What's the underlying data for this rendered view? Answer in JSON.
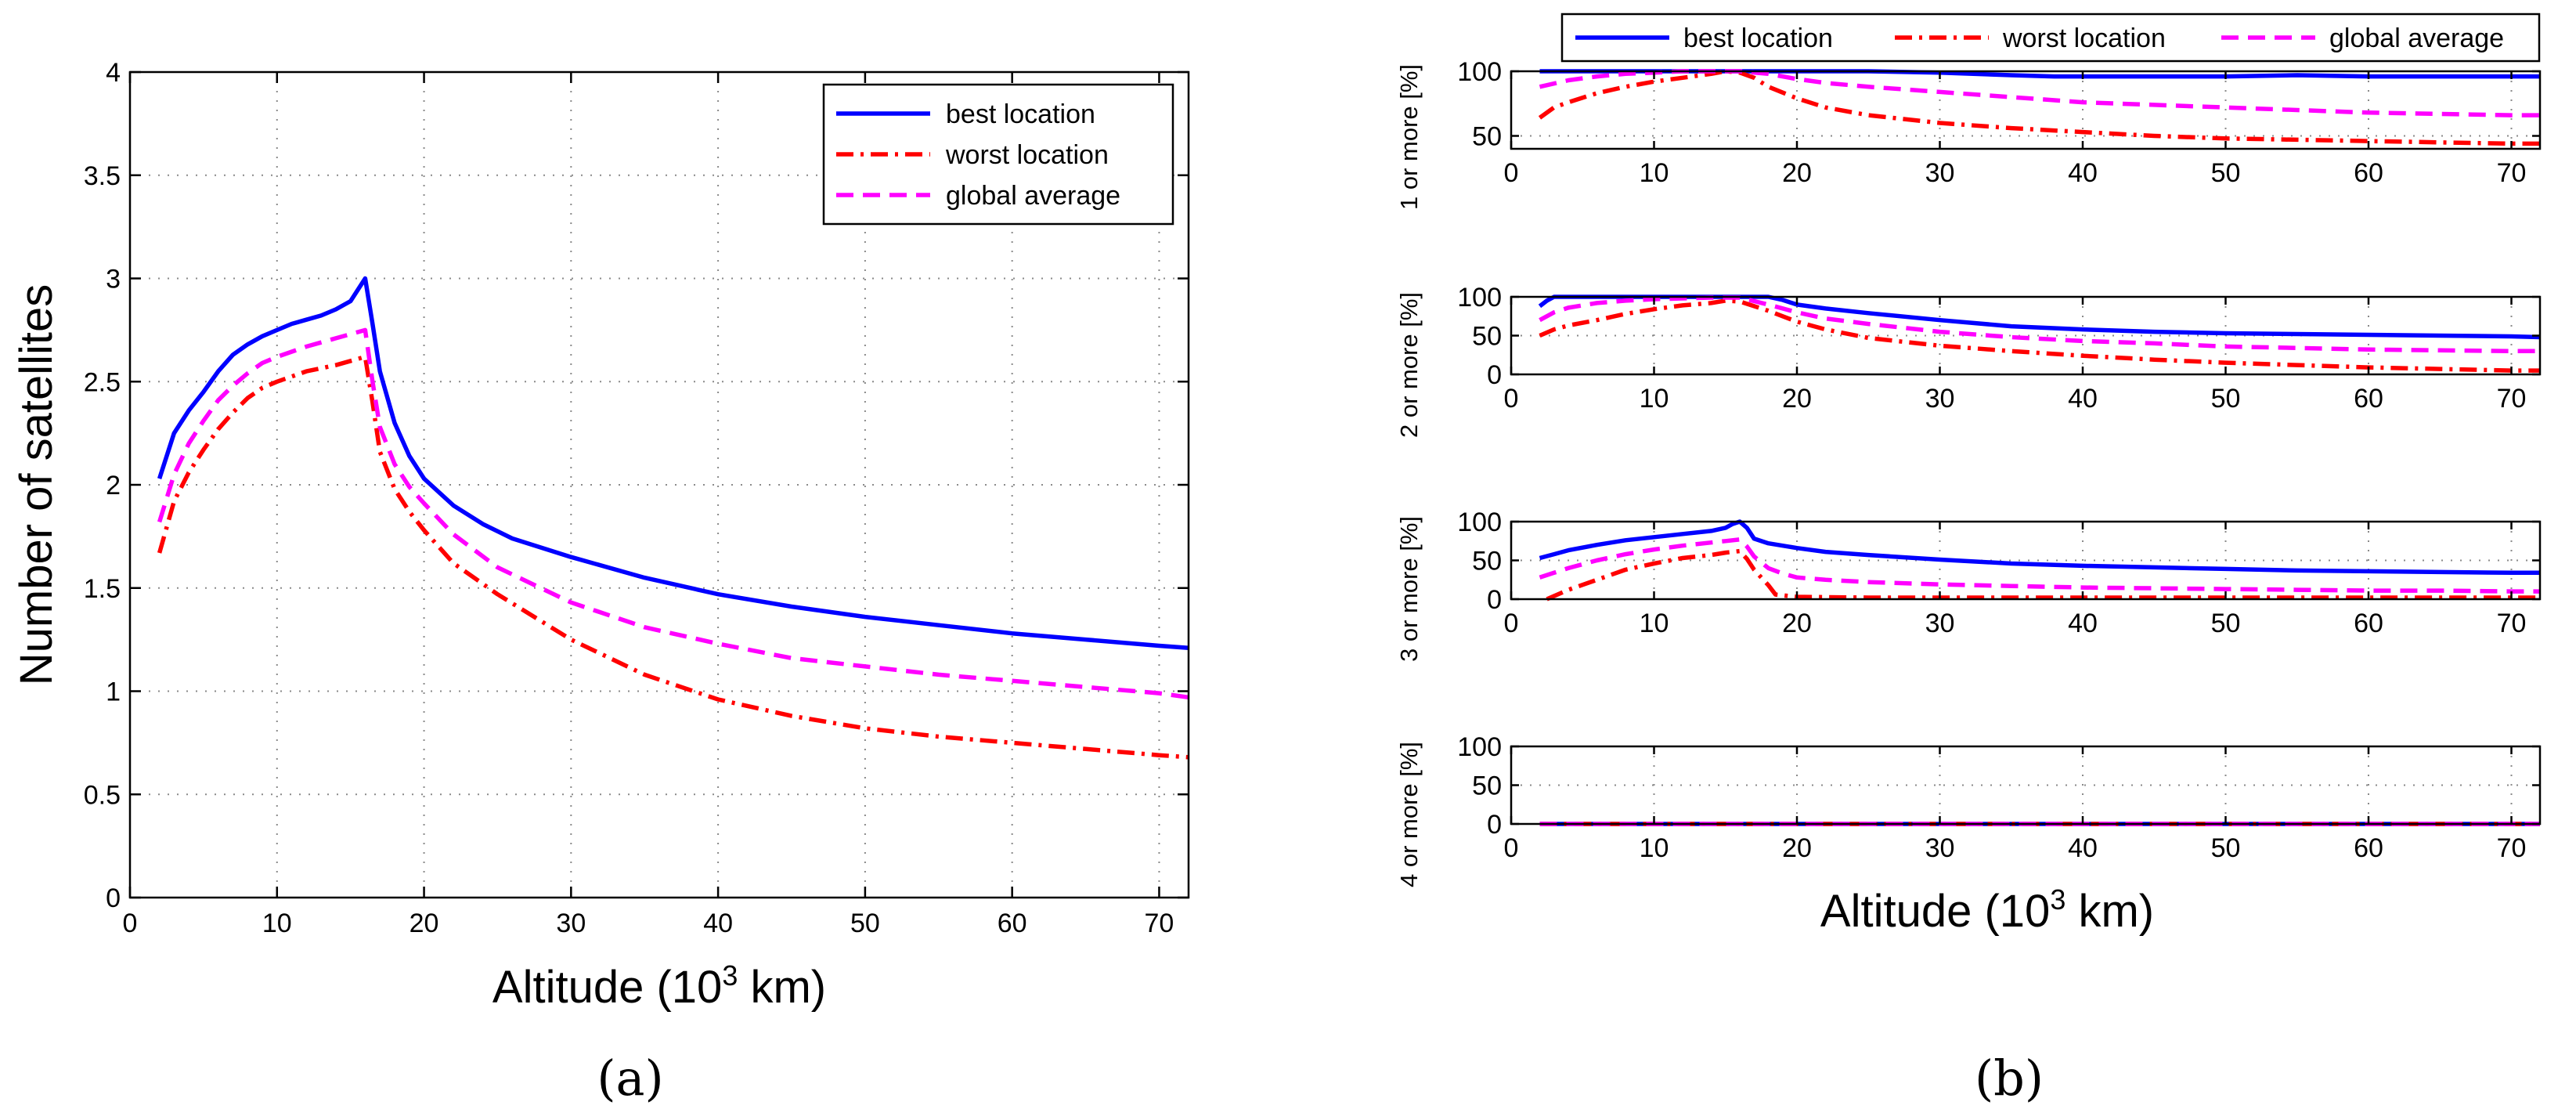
{
  "figure": {
    "panel_a_label": "(a)",
    "panel_b_label": "(b)"
  },
  "legend": [
    {
      "key": "best",
      "label": "best location",
      "color": "#0000ff",
      "dash": "solid"
    },
    {
      "key": "worst",
      "label": "worst location",
      "color": "#ff0000",
      "dash": "dashdot"
    },
    {
      "key": "avg",
      "label": "global average",
      "color": "#ff00ff",
      "dash": "dashed"
    }
  ],
  "chart_data": [
    {
      "id": "a",
      "type": "line",
      "title": "",
      "xlabel": "Altitude (10",
      "xlabel_sup": "3",
      "xlabel_tail": " km)",
      "ylabel": "Number of satellites",
      "xlim": [
        0,
        72
      ],
      "ylim": [
        0,
        4
      ],
      "xticks": [
        0,
        10,
        20,
        30,
        40,
        50,
        60,
        70
      ],
      "yticks": [
        0,
        0.5,
        1,
        1.5,
        2,
        2.5,
        3,
        3.5,
        4
      ],
      "ytick_labels": [
        "0",
        "0.5",
        "1",
        "1.5",
        "2",
        "2.5",
        "3",
        "3.5",
        "4"
      ],
      "grid": true,
      "legend_position": "top-right",
      "series": [
        {
          "key": "best",
          "name": "best location",
          "x": [
            2,
            3,
            4,
            5,
            6,
            7,
            8,
            9,
            10,
            11,
            12,
            13,
            14,
            15,
            16,
            16.5,
            17,
            18,
            19,
            20,
            22,
            24,
            26,
            30,
            35,
            40,
            45,
            50,
            55,
            60,
            65,
            70,
            72
          ],
          "y": [
            2.03,
            2.25,
            2.36,
            2.45,
            2.55,
            2.63,
            2.68,
            2.72,
            2.75,
            2.78,
            2.8,
            2.82,
            2.85,
            2.89,
            3.0,
            2.78,
            2.55,
            2.3,
            2.14,
            2.03,
            1.9,
            1.81,
            1.74,
            1.65,
            1.55,
            1.47,
            1.41,
            1.36,
            1.32,
            1.28,
            1.25,
            1.22,
            1.21
          ]
        },
        {
          "key": "worst",
          "name": "worst location",
          "x": [
            2,
            3,
            4,
            5,
            6,
            7,
            8,
            9,
            10,
            12,
            14,
            16,
            16.5,
            17,
            18,
            19,
            20,
            22,
            25,
            30,
            35,
            40,
            45,
            50,
            55,
            60,
            65,
            70,
            72
          ],
          "y": [
            1.67,
            1.92,
            2.06,
            2.17,
            2.27,
            2.35,
            2.42,
            2.47,
            2.5,
            2.55,
            2.58,
            2.62,
            2.4,
            2.16,
            1.98,
            1.87,
            1.78,
            1.62,
            1.47,
            1.25,
            1.08,
            0.96,
            0.88,
            0.82,
            0.78,
            0.75,
            0.72,
            0.69,
            0.68
          ]
        },
        {
          "key": "avg",
          "name": "global average",
          "x": [
            2,
            3,
            4,
            5,
            6,
            7,
            8,
            9,
            10,
            12,
            14,
            16,
            16.5,
            17,
            18,
            19,
            20,
            22,
            25,
            30,
            35,
            40,
            45,
            50,
            55,
            60,
            65,
            70,
            72
          ],
          "y": [
            1.82,
            2.05,
            2.2,
            2.31,
            2.41,
            2.48,
            2.54,
            2.59,
            2.62,
            2.67,
            2.71,
            2.75,
            2.5,
            2.28,
            2.1,
            1.99,
            1.91,
            1.76,
            1.6,
            1.43,
            1.31,
            1.23,
            1.16,
            1.12,
            1.08,
            1.05,
            1.02,
            0.99,
            0.97
          ]
        }
      ]
    },
    {
      "id": "b1",
      "type": "line",
      "ylabel": "1 or more [%]",
      "xlim": [
        0,
        72
      ],
      "ylim": [
        40,
        100
      ],
      "xticks": [
        0,
        10,
        20,
        30,
        40,
        50,
        60,
        70
      ],
      "yticks": [
        50,
        100
      ],
      "grid": true,
      "series": [
        {
          "key": "best",
          "name": "best location",
          "x": [
            2,
            4,
            6,
            8,
            10,
            12,
            14,
            16,
            18,
            20,
            25,
            30,
            35,
            38,
            40,
            45,
            50,
            55,
            60,
            65,
            70,
            72
          ],
          "y": [
            100,
            100,
            100,
            100,
            100,
            100,
            100,
            100,
            100,
            100,
            100,
            99,
            97,
            96,
            96,
            96,
            96,
            97,
            96,
            96,
            96,
            96
          ]
        },
        {
          "key": "worst",
          "name": "worst location",
          "x": [
            2,
            3,
            4,
            6,
            8,
            10,
            12,
            14,
            15,
            16,
            17,
            18,
            20,
            22,
            25,
            30,
            35,
            40,
            45,
            50,
            55,
            60,
            65,
            70,
            72
          ],
          "y": [
            64,
            72,
            76,
            83,
            88,
            92,
            95,
            98,
            100,
            99,
            95,
            88,
            79,
            72,
            66,
            60,
            56,
            53,
            50,
            48,
            47,
            46,
            45,
            44,
            44
          ]
        },
        {
          "key": "avg",
          "name": "global average",
          "x": [
            2,
            4,
            6,
            8,
            10,
            12,
            14,
            16,
            18,
            20,
            22,
            25,
            30,
            35,
            40,
            45,
            50,
            55,
            60,
            65,
            70,
            72
          ],
          "y": [
            88,
            93,
            96,
            98,
            99,
            100,
            100,
            100,
            98,
            94,
            91,
            88,
            84,
            80,
            76,
            74,
            72,
            70,
            68,
            67,
            66,
            66
          ]
        }
      ]
    },
    {
      "id": "b2",
      "type": "line",
      "ylabel": "2 or more [%]",
      "xlim": [
        0,
        72
      ],
      "ylim": [
        0,
        100
      ],
      "xticks": [
        0,
        10,
        20,
        30,
        40,
        50,
        60,
        70
      ],
      "yticks": [
        0,
        50,
        100
      ],
      "grid": true,
      "series": [
        {
          "key": "best",
          "name": "best location",
          "x": [
            2,
            2.5,
            3,
            4,
            6,
            8,
            10,
            12,
            14,
            16,
            18,
            19,
            20,
            22,
            25,
            30,
            35,
            40,
            45,
            50,
            55,
            60,
            65,
            70,
            72
          ],
          "y": [
            88,
            95,
            100,
            100,
            100,
            100,
            100,
            100,
            100,
            100,
            100,
            96,
            90,
            85,
            79,
            70,
            62,
            58,
            55,
            53,
            52,
            51,
            50,
            49,
            48
          ]
        },
        {
          "key": "worst",
          "name": "worst location",
          "x": [
            2,
            3,
            4,
            6,
            8,
            10,
            12,
            14,
            15,
            16,
            17,
            18,
            20,
            22,
            25,
            30,
            35,
            40,
            45,
            50,
            55,
            60,
            65,
            70,
            72
          ],
          "y": [
            50,
            58,
            63,
            70,
            78,
            84,
            89,
            92,
            95,
            94,
            88,
            82,
            68,
            58,
            47,
            37,
            30,
            24,
            19,
            15,
            12,
            9,
            7,
            5,
            5
          ]
        },
        {
          "key": "avg",
          "name": "global average",
          "x": [
            2,
            3,
            4,
            6,
            8,
            10,
            12,
            14,
            16,
            18,
            20,
            22,
            25,
            30,
            35,
            40,
            45,
            50,
            55,
            60,
            65,
            70,
            72
          ],
          "y": [
            70,
            80,
            86,
            92,
            95,
            97,
            98,
            99,
            99,
            90,
            80,
            72,
            65,
            55,
            48,
            43,
            40,
            36,
            34,
            32,
            31,
            30,
            30
          ]
        }
      ]
    },
    {
      "id": "b3",
      "type": "line",
      "ylabel": "3 or more [%]",
      "xlim": [
        0,
        72
      ],
      "ylim": [
        0,
        100
      ],
      "xticks": [
        0,
        10,
        20,
        30,
        40,
        50,
        60,
        70
      ],
      "yticks": [
        0,
        50,
        100
      ],
      "grid": true,
      "series": [
        {
          "key": "best",
          "name": "best location",
          "x": [
            2,
            3,
            4,
            6,
            8,
            10,
            12,
            14,
            15,
            15.5,
            16,
            16.5,
            17,
            18,
            20,
            22,
            25,
            30,
            35,
            40,
            45,
            50,
            55,
            60,
            65,
            70,
            72
          ],
          "y": [
            53,
            58,
            63,
            70,
            76,
            80,
            84,
            88,
            92,
            97,
            100,
            92,
            78,
            72,
            66,
            61,
            57,
            51,
            46,
            43,
            41,
            39,
            37,
            36,
            35,
            34,
            34
          ]
        },
        {
          "key": "worst",
          "name": "worst location",
          "x": [
            2.5,
            3,
            4,
            6,
            8,
            10,
            12,
            14,
            15,
            16,
            16.5,
            17,
            18,
            18.5,
            20,
            25,
            30,
            40,
            50,
            60,
            70,
            72
          ],
          "y": [
            0,
            4,
            12,
            25,
            38,
            46,
            53,
            57,
            60,
            62,
            52,
            38,
            18,
            6,
            3,
            2,
            2,
            2,
            2,
            2,
            2,
            2
          ]
        },
        {
          "key": "avg",
          "name": "global average",
          "x": [
            2,
            3,
            4,
            6,
            8,
            10,
            12,
            14,
            15,
            16,
            16.5,
            17,
            18,
            19,
            20,
            22,
            25,
            30,
            35,
            40,
            45,
            50,
            55,
            60,
            65,
            70,
            72
          ],
          "y": [
            28,
            34,
            40,
            50,
            58,
            64,
            69,
            73,
            75,
            77,
            68,
            55,
            40,
            33,
            28,
            25,
            22,
            19,
            17,
            15,
            14,
            13,
            12,
            11,
            11,
            10,
            10
          ]
        }
      ]
    },
    {
      "id": "b4",
      "type": "line",
      "ylabel": "4 or more [%]",
      "xlabel": "Altitude (10",
      "xlabel_sup": "3",
      "xlabel_tail": " km)",
      "xlim": [
        0,
        72
      ],
      "ylim": [
        0,
        100
      ],
      "xticks": [
        0,
        10,
        20,
        30,
        40,
        50,
        60,
        70
      ],
      "yticks": [
        0,
        50,
        100
      ],
      "grid": true,
      "series": [
        {
          "key": "best",
          "name": "best location",
          "x": [
            2,
            72
          ],
          "y": [
            0,
            0
          ]
        },
        {
          "key": "worst",
          "name": "worst location",
          "x": [
            2,
            72
          ],
          "y": [
            0,
            0
          ]
        },
        {
          "key": "avg",
          "name": "global average",
          "x": [
            2,
            72
          ],
          "y": [
            0,
            0
          ]
        }
      ]
    }
  ]
}
